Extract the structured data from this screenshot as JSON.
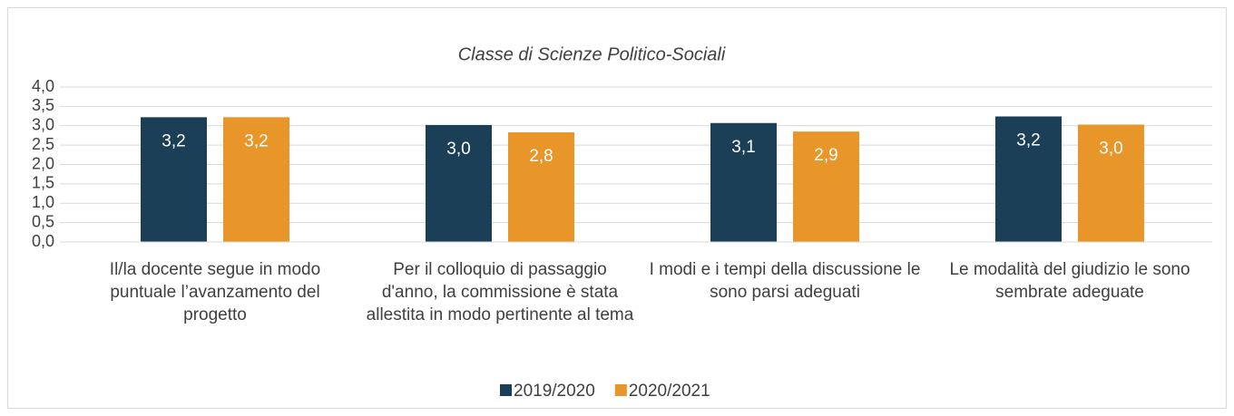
{
  "chart_data": {
    "type": "bar",
    "title": "Classe di Scienze Politico-Sociali",
    "categories": [
      "Il/la docente segue in modo puntuale l’avanzamento del progetto",
      "Per il colloquio di passaggio d'anno, la commissione è stata allestita in modo pertinente al tema",
      "I modi e i tempi della discussione le sono parsi adeguati",
      "Le modalità del giudizio le sono sembrate adeguate"
    ],
    "series": [
      {
        "name": "2019/2020",
        "color": "#1b3f57",
        "values": [
          3.22,
          3.02,
          3.07,
          3.24
        ],
        "value_labels": [
          "3,2",
          "3,0",
          "3,1",
          "3,2"
        ]
      },
      {
        "name": "2020/2021",
        "color": "#e8952a",
        "values": [
          3.22,
          2.83,
          2.85,
          3.03
        ],
        "value_labels": [
          "3,2",
          "2,8",
          "2,9",
          "3,0"
        ]
      }
    ],
    "ylim": [
      0,
      4
    ],
    "yticks": [
      {
        "value": 0,
        "label": "0,0"
      },
      {
        "value": 0.5,
        "label": "0,5"
      },
      {
        "value": 1,
        "label": "1,0"
      },
      {
        "value": 1.5,
        "label": "1,5"
      },
      {
        "value": 2,
        "label": "2,0"
      },
      {
        "value": 2.5,
        "label": "2,5"
      },
      {
        "value": 3,
        "label": "3,0"
      },
      {
        "value": 3.5,
        "label": "3,5"
      },
      {
        "value": 4,
        "label": "4,0"
      }
    ],
    "grid": true,
    "legend": "bottom"
  }
}
